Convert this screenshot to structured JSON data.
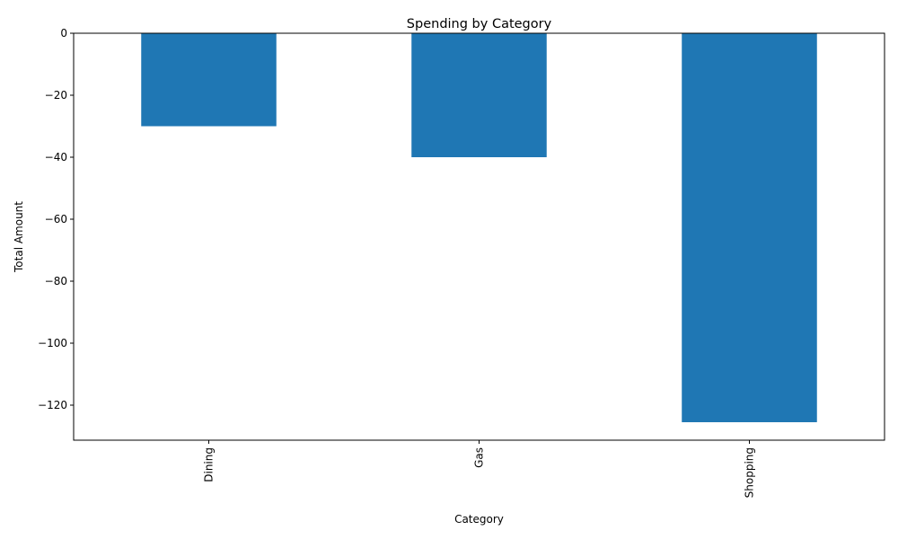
{
  "chart_data": {
    "type": "bar",
    "title": "Spending by Category",
    "xlabel": "Category",
    "ylabel": "Total Amount",
    "categories": [
      "Dining",
      "Gas",
      "Shopping"
    ],
    "values": [
      -30,
      -40,
      -125.5
    ],
    "ylim": [
      -131.3,
      0
    ],
    "yticks": [
      0,
      -20,
      -40,
      -60,
      -80,
      -100,
      -120
    ],
    "ytick_labels": [
      "0",
      "−20",
      "−40",
      "−60",
      "−80",
      "−100",
      "−120"
    ],
    "x_tick_rotation": "vertical",
    "bar_color": "#1f77b4",
    "grid": false,
    "legend": "none"
  }
}
